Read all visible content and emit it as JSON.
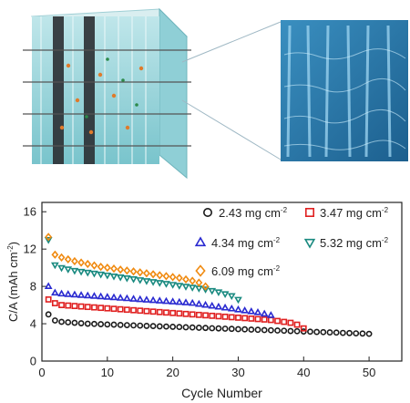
{
  "chart_data": {
    "type": "scatter",
    "xlabel": "Cycle Number",
    "ylabel": "C/A (mAh cm",
    "ylabel_sup": "-2",
    "ylabel_close": ")",
    "xlim": [
      0,
      55
    ],
    "ylim": [
      0,
      17
    ],
    "xticks": [
      0,
      10,
      20,
      30,
      40,
      50
    ],
    "yticks": [
      0,
      4,
      8,
      12,
      16
    ],
    "grid": false,
    "legend_placement": "top-right",
    "series": [
      {
        "name": "2.43 mg cm",
        "sup": "-2",
        "marker": "circle",
        "color": "#1a1a1a",
        "x": [
          1,
          2,
          3,
          4,
          5,
          6,
          7,
          8,
          9,
          10,
          11,
          12,
          13,
          14,
          15,
          16,
          17,
          18,
          19,
          20,
          21,
          22,
          23,
          24,
          25,
          26,
          27,
          28,
          29,
          30,
          31,
          32,
          33,
          34,
          35,
          36,
          37,
          38,
          39,
          40,
          41,
          42,
          43,
          44,
          45,
          46,
          47,
          48,
          49,
          50
        ],
        "y": [
          5.0,
          4.35,
          4.2,
          4.15,
          4.1,
          4.05,
          4.0,
          3.98,
          3.95,
          3.92,
          3.9,
          3.87,
          3.85,
          3.82,
          3.8,
          3.77,
          3.75,
          3.72,
          3.7,
          3.67,
          3.65,
          3.62,
          3.6,
          3.57,
          3.55,
          3.52,
          3.5,
          3.47,
          3.45,
          3.42,
          3.4,
          3.37,
          3.35,
          3.32,
          3.3,
          3.27,
          3.25,
          3.22,
          3.2,
          3.17,
          3.15,
          3.12,
          3.1,
          3.07,
          3.05,
          3.02,
          3.0,
          2.97,
          2.95,
          2.92
        ]
      },
      {
        "name": "3.47 mg cm",
        "sup": "-2",
        "marker": "square",
        "color": "#e02020",
        "x": [
          1,
          2,
          3,
          4,
          5,
          6,
          7,
          8,
          9,
          10,
          11,
          12,
          13,
          14,
          15,
          16,
          17,
          18,
          19,
          20,
          21,
          22,
          23,
          24,
          25,
          26,
          27,
          28,
          29,
          30,
          31,
          32,
          33,
          34,
          35,
          36,
          37,
          38,
          39,
          40
        ],
        "y": [
          6.6,
          6.2,
          6.0,
          5.95,
          5.9,
          5.85,
          5.8,
          5.75,
          5.7,
          5.65,
          5.6,
          5.55,
          5.5,
          5.45,
          5.4,
          5.35,
          5.3,
          5.25,
          5.2,
          5.15,
          5.1,
          5.05,
          5.0,
          4.95,
          4.9,
          4.85,
          4.8,
          4.75,
          4.7,
          4.65,
          4.6,
          4.55,
          4.5,
          4.45,
          4.4,
          4.3,
          4.2,
          4.1,
          3.9,
          3.5
        ]
      },
      {
        "name": "4.34 mg cm",
        "sup": "-2",
        "marker": "triangle-up",
        "color": "#2a2ad0",
        "x": [
          1,
          2,
          3,
          4,
          5,
          6,
          7,
          8,
          9,
          10,
          11,
          12,
          13,
          14,
          15,
          16,
          17,
          18,
          19,
          20,
          21,
          22,
          23,
          24,
          25,
          26,
          27,
          28,
          29,
          30,
          31,
          32,
          33,
          34,
          35
        ],
        "y": [
          8.0,
          7.3,
          7.2,
          7.15,
          7.1,
          7.05,
          7.0,
          6.95,
          6.9,
          6.85,
          6.8,
          6.75,
          6.7,
          6.65,
          6.6,
          6.55,
          6.5,
          6.45,
          6.4,
          6.35,
          6.3,
          6.25,
          6.2,
          6.1,
          6.0,
          5.9,
          5.8,
          5.7,
          5.6,
          5.5,
          5.4,
          5.3,
          5.2,
          5.05,
          4.9
        ]
      },
      {
        "name": "5.32 mg cm",
        "sup": "-2",
        "marker": "triangle-down",
        "color": "#1a8a80",
        "x": [
          1,
          2,
          3,
          4,
          5,
          6,
          7,
          8,
          9,
          10,
          11,
          12,
          13,
          14,
          15,
          16,
          17,
          18,
          19,
          20,
          21,
          22,
          23,
          24,
          25,
          26,
          27,
          28,
          29,
          30
        ],
        "y": [
          13.0,
          10.3,
          10.0,
          9.85,
          9.7,
          9.6,
          9.5,
          9.4,
          9.3,
          9.2,
          9.1,
          9.0,
          8.9,
          8.8,
          8.7,
          8.6,
          8.5,
          8.4,
          8.3,
          8.2,
          8.1,
          8.0,
          7.9,
          7.8,
          7.7,
          7.55,
          7.4,
          7.2,
          7.0,
          6.6
        ]
      },
      {
        "name": "6.09 mg cm",
        "sup": "-2",
        "marker": "diamond",
        "color": "#f08a10",
        "x": [
          1,
          2,
          3,
          4,
          5,
          6,
          7,
          8,
          9,
          10,
          11,
          12,
          13,
          14,
          15,
          16,
          17,
          18,
          19,
          20,
          21,
          22,
          23,
          24,
          25
        ],
        "y": [
          13.3,
          11.4,
          11.1,
          10.9,
          10.7,
          10.55,
          10.4,
          10.25,
          10.1,
          10.0,
          9.9,
          9.8,
          9.7,
          9.6,
          9.5,
          9.4,
          9.3,
          9.2,
          9.1,
          9.0,
          8.9,
          8.75,
          8.6,
          8.4,
          8.0
        ]
      }
    ]
  }
}
